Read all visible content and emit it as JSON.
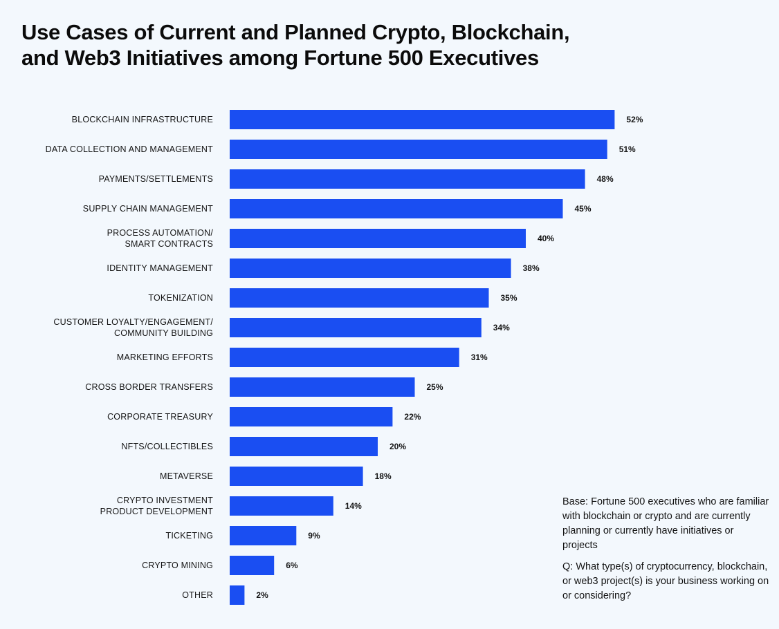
{
  "title_lines": [
    "Use Cases of Current and Planned Crypto, Blockchain,",
    "and Web3 Initiatives among Fortune 500 Executives"
  ],
  "notes": {
    "base": "Base: Fortune 500 executives who are familiar with blockchain or crypto and are currently planning or currently have initiatives or projects",
    "question": "Q: What type(s) of cryptocurrency, blockchain, or web3 project(s) is your business working on or considering?"
  },
  "colors": {
    "bar": "#1a4ef2",
    "background": "#f3f8fd"
  },
  "chart_data": {
    "type": "bar",
    "orientation": "horizontal",
    "title": "Use Cases of Current and Planned Crypto, Blockchain, and Web3 Initiatives among Fortune 500 Executives",
    "categories": [
      [
        "BLOCKCHAIN INFRASTRUCTURE"
      ],
      [
        "DATA COLLECTION AND MANAGEMENT"
      ],
      [
        "PAYMENTS/SETTLEMENTS"
      ],
      [
        "SUPPLY CHAIN MANAGEMENT"
      ],
      [
        "PROCESS AUTOMATION/",
        "SMART CONTRACTS"
      ],
      [
        "IDENTITY MANAGEMENT"
      ],
      [
        "TOKENIZATION"
      ],
      [
        "CUSTOMER LOYALTY/ENGAGEMENT/",
        "COMMUNITY BUILDING"
      ],
      [
        "MARKETING EFFORTS"
      ],
      [
        "CROSS BORDER TRANSFERS"
      ],
      [
        "CORPORATE TREASURY"
      ],
      [
        "NFTS/COLLECTIBLES"
      ],
      [
        "METAVERSE"
      ],
      [
        "CRYPTO INVESTMENT",
        "PRODUCT DEVELOPMENT"
      ],
      [
        "TICKETING"
      ],
      [
        "CRYPTO MINING"
      ],
      [
        "OTHER"
      ]
    ],
    "values": [
      52,
      51,
      48,
      45,
      40,
      38,
      35,
      34,
      31,
      25,
      22,
      20,
      18,
      14,
      9,
      6,
      2
    ],
    "value_labels": [
      "52%",
      "51%",
      "48%",
      "45%",
      "40%",
      "38%",
      "35%",
      "34%",
      "31%",
      "25%",
      "22%",
      "20%",
      "18%",
      "14%",
      "9%",
      "6%",
      "2%"
    ],
    "unit": "%",
    "xlabel": "",
    "ylabel": "",
    "grid": false,
    "legend": "none"
  }
}
